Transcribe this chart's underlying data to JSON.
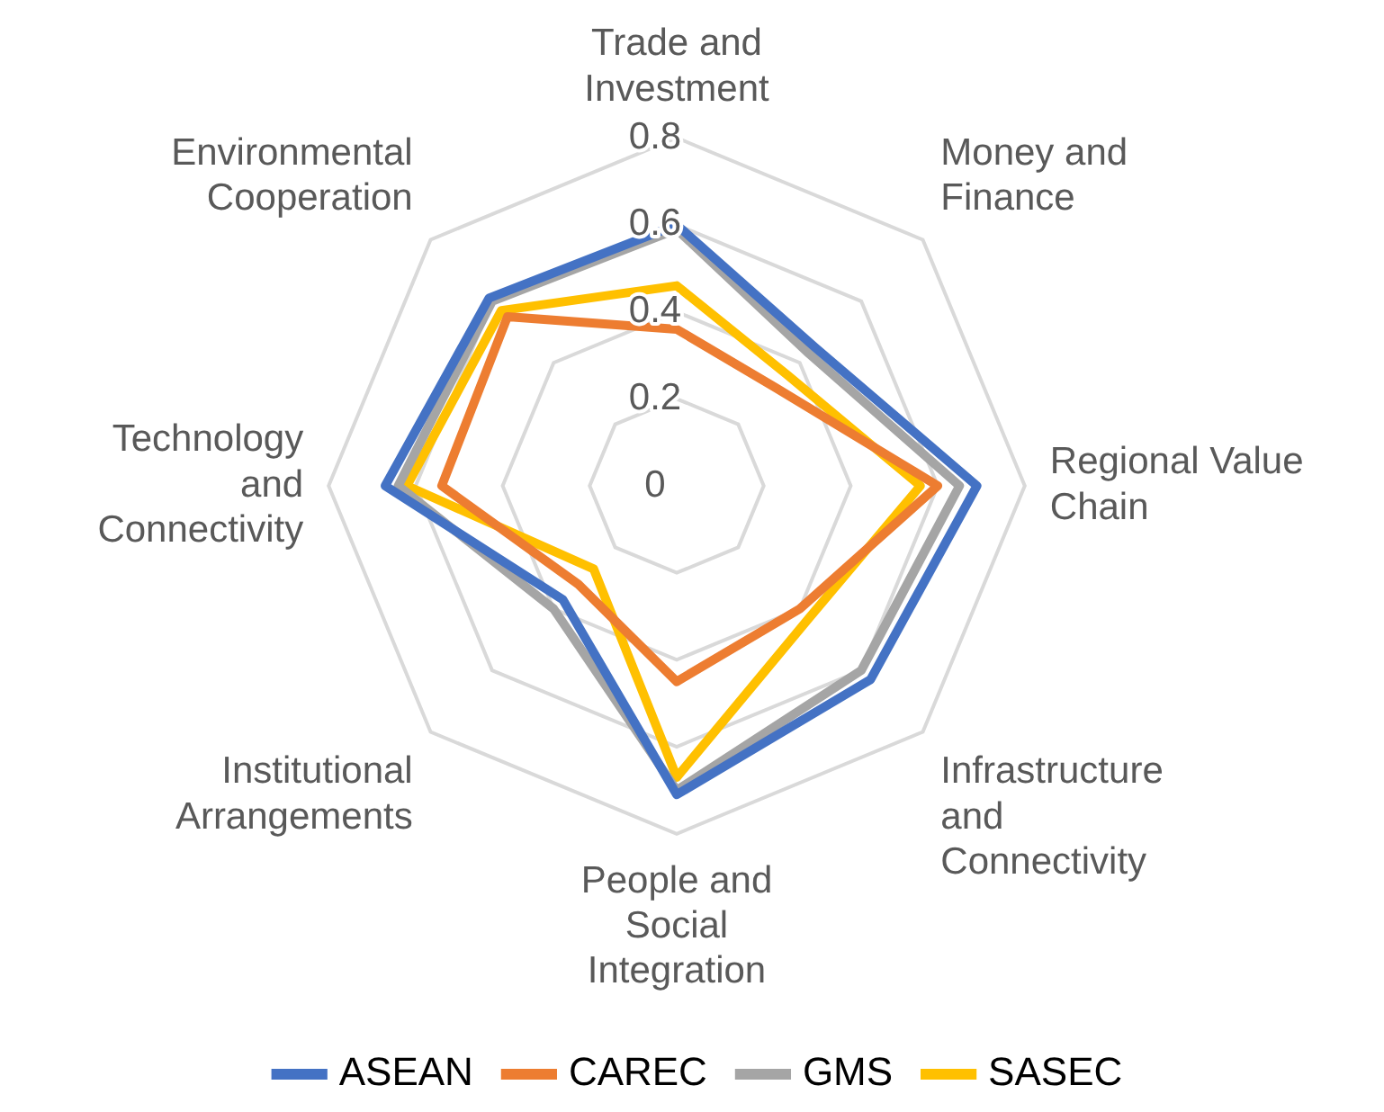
{
  "chart_data": {
    "type": "radar",
    "categories": [
      "Trade and\nInvestment",
      "Money and\nFinance",
      "Regional Value\nChain",
      "Infrastructure\nand\nConnectivity",
      "People and\nSocial\nIntegration",
      "Institutional\nArrangements",
      "Technology\nand\nConnectivity",
      "Environmental\nCooperation"
    ],
    "series": [
      {
        "name": "ASEAN",
        "color": "#4472c4",
        "values": [
          0.6,
          0.45,
          0.69,
          0.63,
          0.71,
          0.37,
          0.67,
          0.61
        ]
      },
      {
        "name": "CAREC",
        "color": "#ed7d31",
        "values": [
          0.36,
          0.32,
          0.6,
          0.4,
          0.45,
          0.32,
          0.54,
          0.55
        ]
      },
      {
        "name": "GMS",
        "color": "#a5a5a5",
        "values": [
          0.59,
          0.43,
          0.65,
          0.6,
          0.7,
          0.4,
          0.64,
          0.6
        ]
      },
      {
        "name": "SASEC",
        "color": "#ffc000",
        "values": [
          0.46,
          0.36,
          0.56,
          0.43,
          0.67,
          0.27,
          0.62,
          0.57
        ]
      }
    ],
    "ylim": [
      0,
      0.8
    ],
    "yticks": [
      0,
      0.2,
      0.4,
      0.6,
      0.8
    ],
    "grid": true,
    "legend": "bottom",
    "marker": "none",
    "line_style": "solid"
  }
}
